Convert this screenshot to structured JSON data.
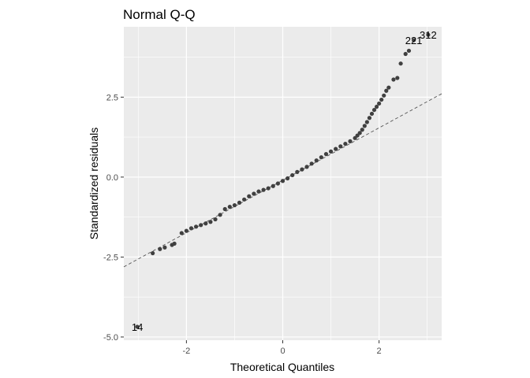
{
  "chart_data": {
    "type": "scatter",
    "title": "Normal Q-Q",
    "xlabel": "Theoretical Quantiles",
    "ylabel": "Standardized residuals",
    "xlim": [
      -3.3,
      3.3
    ],
    "ylim": [
      -5.1,
      4.7
    ],
    "x_ticks": [
      -2,
      0,
      2
    ],
    "x_tick_labels": [
      "-2",
      "0",
      "2"
    ],
    "y_ticks": [
      -5.0,
      -2.5,
      0.0,
      2.5
    ],
    "y_tick_labels": [
      "-5.0",
      "-2.5",
      "0.0",
      "2.5"
    ],
    "grid": true,
    "reference_line": {
      "style": "dashed",
      "slope": 0.82,
      "intercept": -0.1
    },
    "highlighted_points": [
      {
        "label": "14",
        "x": -3.02,
        "y": -4.68
      },
      {
        "label": "221",
        "x": 2.72,
        "y": 4.28
      },
      {
        "label": "312",
        "x": 3.02,
        "y": 4.45
      }
    ],
    "annotations": [
      {
        "text": "14",
        "x": -3.02,
        "y": -4.68
      },
      {
        "text": "221",
        "x": 2.72,
        "y": 4.28
      },
      {
        "text": "312",
        "x": 3.02,
        "y": 4.45
      }
    ],
    "points": [
      [
        -2.7,
        -2.38
      ],
      [
        -2.55,
        -2.25
      ],
      [
        -2.45,
        -2.2
      ],
      [
        -2.3,
        -2.12
      ],
      [
        -2.25,
        -2.08
      ],
      [
        -2.1,
        -1.75
      ],
      [
        -2.0,
        -1.68
      ],
      [
        -1.9,
        -1.6
      ],
      [
        -1.8,
        -1.55
      ],
      [
        -1.7,
        -1.5
      ],
      [
        -1.6,
        -1.45
      ],
      [
        -1.5,
        -1.4
      ],
      [
        -1.4,
        -1.32
      ],
      [
        -1.3,
        -1.18
      ],
      [
        -1.2,
        -1.0
      ],
      [
        -1.1,
        -0.93
      ],
      [
        -1.0,
        -0.88
      ],
      [
        -0.9,
        -0.8
      ],
      [
        -0.8,
        -0.7
      ],
      [
        -0.7,
        -0.6
      ],
      [
        -0.6,
        -0.52
      ],
      [
        -0.5,
        -0.45
      ],
      [
        -0.4,
        -0.4
      ],
      [
        -0.3,
        -0.35
      ],
      [
        -0.2,
        -0.28
      ],
      [
        -0.1,
        -0.2
      ],
      [
        0.0,
        -0.12
      ],
      [
        0.1,
        -0.04
      ],
      [
        0.2,
        0.06
      ],
      [
        0.3,
        0.16
      ],
      [
        0.4,
        0.24
      ],
      [
        0.5,
        0.32
      ],
      [
        0.6,
        0.42
      ],
      [
        0.7,
        0.52
      ],
      [
        0.8,
        0.62
      ],
      [
        0.9,
        0.72
      ],
      [
        1.0,
        0.8
      ],
      [
        1.1,
        0.88
      ],
      [
        1.2,
        0.96
      ],
      [
        1.3,
        1.04
      ],
      [
        1.4,
        1.12
      ],
      [
        1.5,
        1.22
      ],
      [
        1.55,
        1.3
      ],
      [
        1.6,
        1.38
      ],
      [
        1.65,
        1.48
      ],
      [
        1.7,
        1.6
      ],
      [
        1.75,
        1.72
      ],
      [
        1.8,
        1.85
      ],
      [
        1.85,
        1.98
      ],
      [
        1.9,
        2.1
      ],
      [
        1.95,
        2.2
      ],
      [
        2.0,
        2.3
      ],
      [
        2.05,
        2.42
      ],
      [
        2.1,
        2.55
      ],
      [
        2.15,
        2.7
      ],
      [
        2.2,
        2.8
      ],
      [
        2.3,
        3.05
      ],
      [
        2.38,
        3.1
      ],
      [
        2.45,
        3.55
      ],
      [
        2.55,
        3.85
      ],
      [
        2.62,
        3.95
      ]
    ]
  }
}
